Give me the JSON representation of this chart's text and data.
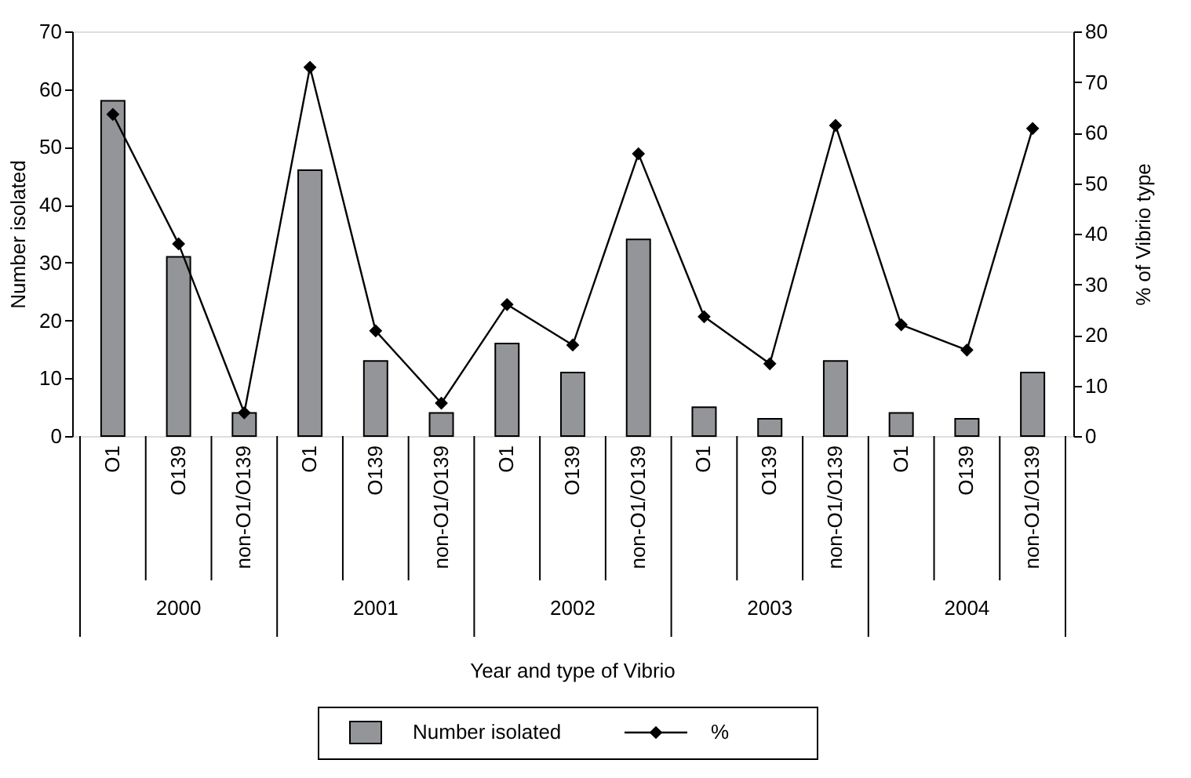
{
  "chart_data": {
    "type": "bar",
    "categories": [
      "O1",
      "O139",
      "non-O1/O139",
      "O1",
      "O139",
      "non-O1/O139",
      "O1",
      "O139",
      "non-O1/O139",
      "O1",
      "O139",
      "non-O1/O139",
      "O1",
      "O139",
      "non-O1/O139"
    ],
    "series": [
      {
        "name": "Number isolated",
        "color": "#939598",
        "values": [
          58,
          31,
          4,
          46,
          13,
          4,
          16,
          11,
          34,
          5,
          3,
          13,
          4,
          3,
          11
        ]
      },
      {
        "name": "%",
        "type": "line",
        "axis": "y2",
        "color": "#000000",
        "marker": "diamond",
        "values": [
          63.6,
          38,
          4.6,
          72.9,
          20.8,
          6.5,
          26,
          18,
          55.8,
          23.6,
          14.3,
          61.4,
          22,
          17,
          60.8
        ]
      }
    ],
    "ylabel": "Number isolated",
    "y2label": "% of Vibrio type",
    "xlabel": "Year and type of Vibrio",
    "ylim": [
      0,
      70
    ],
    "yticks": [
      0,
      10,
      20,
      30,
      40,
      50,
      60,
      70
    ],
    "y2lim": [
      0,
      80
    ],
    "y2ticks": [
      0,
      10,
      20,
      30,
      40,
      50,
      60,
      70,
      80
    ],
    "annotations": [
      "2000",
      "2001",
      "2002",
      "2003",
      "2004"
    ],
    "legend": "bottom",
    "grid": false
  }
}
